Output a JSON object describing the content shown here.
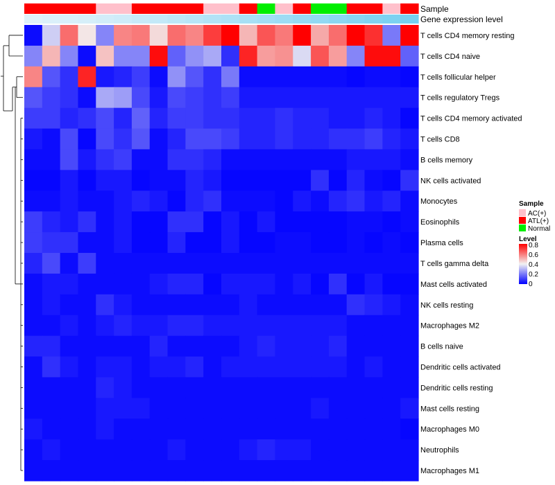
{
  "chart_data": {
    "type": "heatmap",
    "title": "",
    "sample_annotation_label": "Sample",
    "expression_annotation_label": "Gene expression level",
    "sample_annotation": [
      "ATL(+)",
      "ATL(+)",
      "ATL(+)",
      "ATL(+)",
      "AC(+)",
      "AC(+)",
      "ATL(+)",
      "ATL(+)",
      "ATL(+)",
      "ATL(+)",
      "AC(+)",
      "AC(+)",
      "ATL(+)",
      "Normal",
      "AC(+)",
      "ATL(+)",
      "Normal",
      "Normal",
      "ATL(+)",
      "ATL(+)",
      "AC(+)",
      "ATL(+)"
    ],
    "expression_annotation": [
      0.05,
      0.08,
      0.1,
      0.12,
      0.15,
      0.18,
      0.22,
      0.26,
      0.3,
      0.34,
      0.38,
      0.42,
      0.46,
      0.5,
      0.54,
      0.58,
      0.62,
      0.66,
      0.7,
      0.74,
      0.78,
      0.82
    ],
    "rows": [
      "T cells CD4 memory resting",
      "T cells CD4 naive",
      "T cells follicular helper",
      "T cells regulatory  Tregs",
      "T cells CD4 memory activated",
      "T cells CD8",
      "B cells memory",
      "NK cells activated",
      "Monocytes",
      "Eosinophils",
      "Plasma cells",
      "T cells gamma delta",
      "Mast cells activated",
      "NK cells resting",
      "Macrophages M2",
      "B cells naive",
      "Dendritic cells activated",
      "Dendritic cells resting",
      "Mast cells resting",
      "Macrophages M0",
      "Neutrophils",
      "Macrophages M1"
    ],
    "values": [
      [
        0.02,
        0.34,
        0.62,
        0.42,
        0.22,
        0.58,
        0.6,
        0.44,
        0.62,
        0.58,
        0.7,
        0.8,
        0.5,
        0.66,
        0.6,
        0.8,
        0.52,
        0.62,
        0.8,
        0.72,
        0.2,
        0.8
      ],
      [
        0.22,
        0.5,
        0.22,
        0.02,
        0.48,
        0.22,
        0.22,
        0.78,
        0.16,
        0.24,
        0.28,
        0.08,
        0.74,
        0.54,
        0.56,
        0.36,
        0.66,
        0.54,
        0.22,
        0.78,
        0.78,
        0.16
      ],
      [
        0.58,
        0.14,
        0.08,
        0.74,
        0.04,
        0.06,
        0.1,
        0.02,
        0.24,
        0.14,
        0.08,
        0.2,
        0.02,
        0.02,
        0.02,
        0.02,
        0.02,
        0.02,
        0.01,
        0.02,
        0.02,
        0.01
      ],
      [
        0.14,
        0.1,
        0.08,
        0.02,
        0.28,
        0.26,
        0.12,
        0.04,
        0.12,
        0.1,
        0.08,
        0.1,
        0.04,
        0.04,
        0.04,
        0.04,
        0.04,
        0.04,
        0.04,
        0.04,
        0.04,
        0.04
      ],
      [
        0.1,
        0.1,
        0.06,
        0.08,
        0.12,
        0.06,
        0.16,
        0.06,
        0.1,
        0.1,
        0.08,
        0.08,
        0.06,
        0.06,
        0.08,
        0.06,
        0.06,
        0.04,
        0.04,
        0.06,
        0.04,
        0.01
      ],
      [
        0.04,
        0.02,
        0.12,
        0.01,
        0.12,
        0.08,
        0.14,
        0.02,
        0.06,
        0.12,
        0.12,
        0.1,
        0.06,
        0.06,
        0.08,
        0.06,
        0.06,
        0.08,
        0.08,
        0.1,
        0.06,
        0.04
      ],
      [
        0.02,
        0.02,
        0.12,
        0.04,
        0.08,
        0.1,
        0.02,
        0.02,
        0.08,
        0.08,
        0.06,
        0.02,
        0.02,
        0.02,
        0.02,
        0.02,
        0.02,
        0.02,
        0.04,
        0.04,
        0.04,
        0.02
      ],
      [
        0.01,
        0.01,
        0.04,
        0.01,
        0.04,
        0.04,
        0.01,
        0.02,
        0.02,
        0.06,
        0.04,
        0.01,
        0.01,
        0.01,
        0.01,
        0.01,
        0.08,
        0.01,
        0.06,
        0.02,
        0.01,
        0.08
      ],
      [
        0.02,
        0.02,
        0.04,
        0.02,
        0.02,
        0.04,
        0.06,
        0.04,
        0.01,
        0.06,
        0.08,
        0.02,
        0.02,
        0.02,
        0.01,
        0.04,
        0.02,
        0.06,
        0.08,
        0.04,
        0.06,
        0.02
      ],
      [
        0.1,
        0.06,
        0.04,
        0.08,
        0.02,
        0.04,
        0.01,
        0.01,
        0.08,
        0.08,
        0.01,
        0.04,
        0.01,
        0.04,
        0.01,
        0.01,
        0.01,
        0.01,
        0.02,
        0.02,
        0.01,
        0.02
      ],
      [
        0.1,
        0.08,
        0.08,
        0.02,
        0.02,
        0.04,
        0.01,
        0.01,
        0.06,
        0.01,
        0.01,
        0.04,
        0.01,
        0.01,
        0.02,
        0.02,
        0.01,
        0.01,
        0.02,
        0.01,
        0.02,
        0.01
      ],
      [
        0.06,
        0.12,
        0.02,
        0.1,
        0.02,
        0.02,
        0.02,
        0.02,
        0.02,
        0.02,
        0.02,
        0.02,
        0.02,
        0.02,
        0.02,
        0.02,
        0.02,
        0.02,
        0.02,
        0.02,
        0.02,
        0.02
      ],
      [
        0.02,
        0.04,
        0.04,
        0.02,
        0.02,
        0.02,
        0.02,
        0.04,
        0.06,
        0.06,
        0.01,
        0.04,
        0.04,
        0.04,
        0.02,
        0.04,
        0.01,
        0.08,
        0.01,
        0.04,
        0.01,
        0.01
      ],
      [
        0.02,
        0.04,
        0.02,
        0.02,
        0.08,
        0.04,
        0.02,
        0.02,
        0.02,
        0.02,
        0.02,
        0.02,
        0.04,
        0.02,
        0.02,
        0.02,
        0.02,
        0.02,
        0.08,
        0.06,
        0.04,
        0.02
      ],
      [
        0.02,
        0.02,
        0.04,
        0.02,
        0.04,
        0.06,
        0.04,
        0.04,
        0.06,
        0.06,
        0.04,
        0.04,
        0.04,
        0.04,
        0.04,
        0.04,
        0.04,
        0.04,
        0.02,
        0.02,
        0.02,
        0.02
      ],
      [
        0.06,
        0.06,
        0.02,
        0.02,
        0.02,
        0.02,
        0.02,
        0.06,
        0.02,
        0.02,
        0.02,
        0.02,
        0.04,
        0.06,
        0.04,
        0.04,
        0.04,
        0.06,
        0.02,
        0.02,
        0.02,
        0.02
      ],
      [
        0.02,
        0.08,
        0.04,
        0.02,
        0.04,
        0.04,
        0.02,
        0.04,
        0.04,
        0.06,
        0.02,
        0.04,
        0.04,
        0.04,
        0.04,
        0.04,
        0.04,
        0.04,
        0.02,
        0.04,
        0.02,
        0.02
      ],
      [
        0.02,
        0.02,
        0.02,
        0.02,
        0.06,
        0.04,
        0.02,
        0.02,
        0.02,
        0.02,
        0.02,
        0.02,
        0.02,
        0.02,
        0.02,
        0.02,
        0.02,
        0.02,
        0.02,
        0.02,
        0.02,
        0.02
      ],
      [
        0.02,
        0.02,
        0.02,
        0.02,
        0.04,
        0.04,
        0.04,
        0.02,
        0.02,
        0.02,
        0.02,
        0.02,
        0.02,
        0.02,
        0.02,
        0.02,
        0.04,
        0.02,
        0.02,
        0.02,
        0.02,
        0.04
      ],
      [
        0.04,
        0.02,
        0.02,
        0.02,
        0.04,
        0.02,
        0.02,
        0.02,
        0.02,
        0.02,
        0.02,
        0.02,
        0.02,
        0.02,
        0.02,
        0.02,
        0.02,
        0.02,
        0.02,
        0.02,
        0.02,
        0.01
      ],
      [
        0.02,
        0.04,
        0.02,
        0.02,
        0.02,
        0.02,
        0.02,
        0.02,
        0.04,
        0.02,
        0.02,
        0.02,
        0.04,
        0.06,
        0.04,
        0.04,
        0.02,
        0.02,
        0.02,
        0.02,
        0.02,
        0.02
      ],
      [
        0.02,
        0.02,
        0.02,
        0.02,
        0.02,
        0.02,
        0.02,
        0.02,
        0.02,
        0.02,
        0.02,
        0.02,
        0.02,
        0.02,
        0.02,
        0.02,
        0.02,
        0.02,
        0.02,
        0.02,
        0.02,
        0.02
      ]
    ],
    "row_dendrogram": true,
    "legend_sample": {
      "title": "Sample",
      "entries": [
        {
          "label": "AC(+)",
          "color": "#ffc0cb"
        },
        {
          "label": "ATL(+)",
          "color": "#ff0000"
        },
        {
          "label": "Normal",
          "color": "#00ee00"
        }
      ]
    },
    "legend_level": {
      "title": "Level",
      "ticks": [
        "0.8",
        "0.6",
        "0.4",
        "0.2",
        "0"
      ],
      "range": [
        0,
        0.8
      ]
    },
    "colors": {
      "low": "#0000ff",
      "mid": "#f2f2f2",
      "high": "#ff0000",
      "expression_low": "#e6f4fb",
      "expression_high": "#5ec8ee"
    }
  }
}
